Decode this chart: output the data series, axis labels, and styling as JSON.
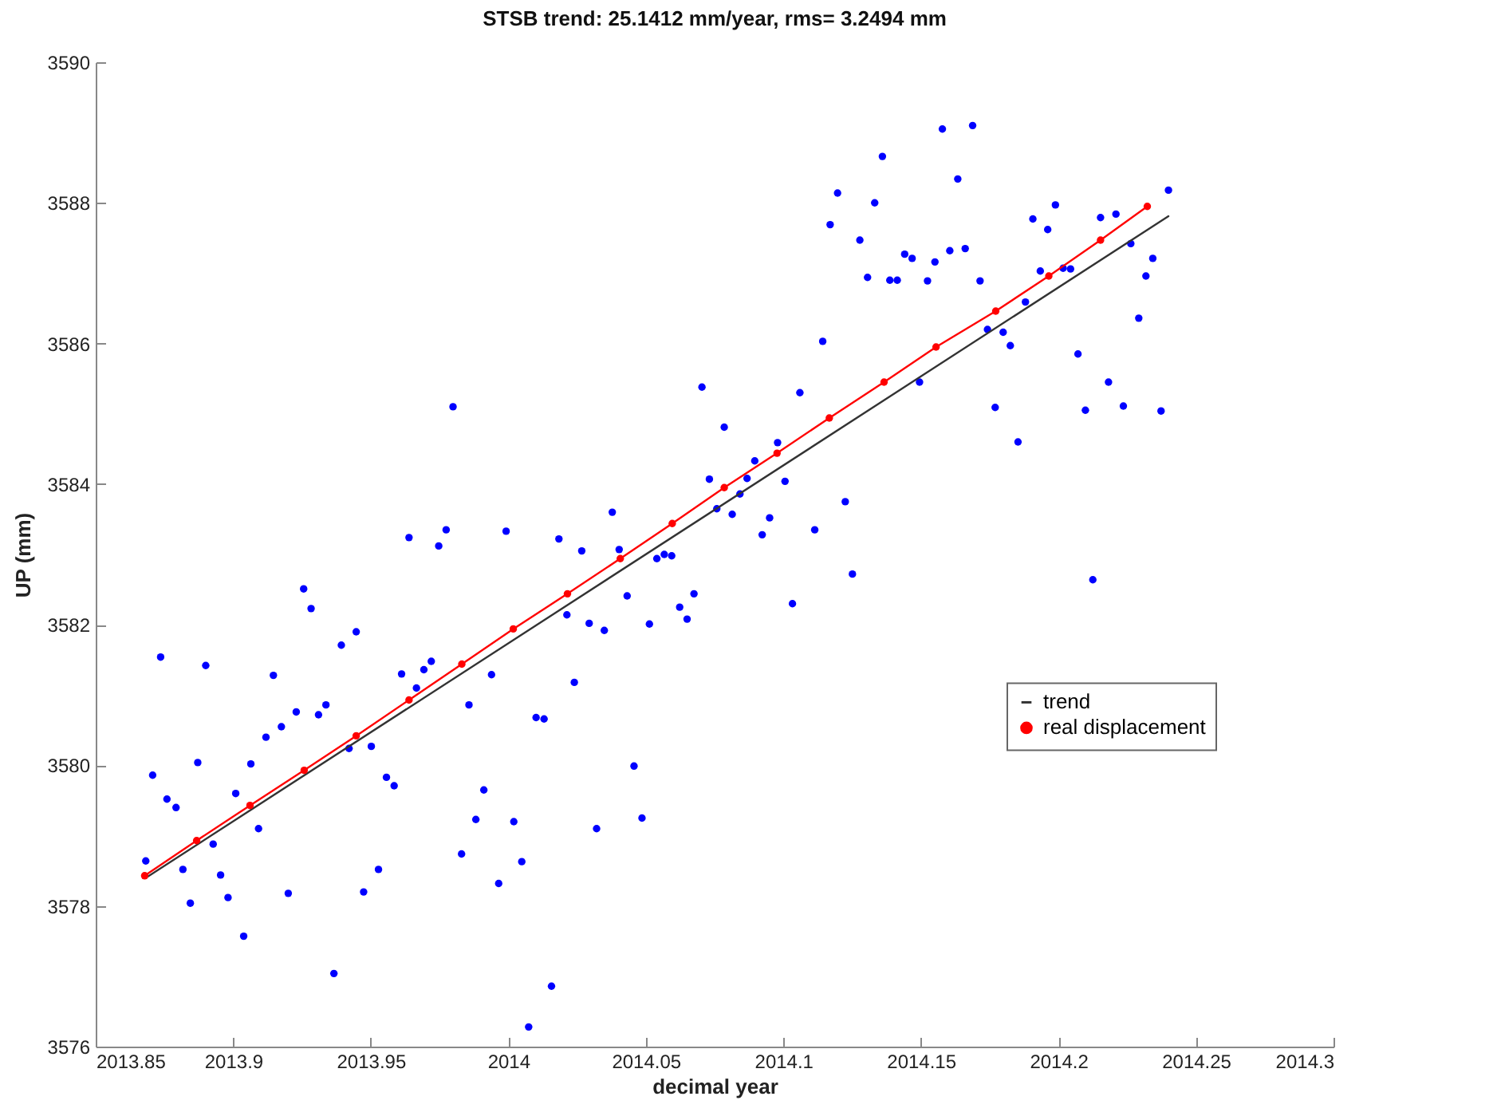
{
  "chart_data": {
    "type": "scatter",
    "title": "STSB   trend: 25.1412 mm/year, rms= 3.2494 mm",
    "xlabel": "decimal year",
    "ylabel": "UP (mm)",
    "xlim": [
      2013.85,
      2014.3
    ],
    "xticks": [
      2013.85,
      2013.9,
      2013.95,
      2014,
      2014.05,
      2014.1,
      2014.15,
      2014.2,
      2014.25,
      2014.3
    ],
    "ylim": [
      3576,
      3590
    ],
    "yticks": [
      3576,
      3578,
      3580,
      3582,
      3584,
      3586,
      3588,
      3590
    ],
    "grid": false,
    "legend": "right",
    "series": [
      {
        "color": "#0000ff",
        "marker": "circle",
        "x": [
          2013.8682,
          2013.8707,
          2013.8736,
          2013.8759,
          2013.8792,
          2013.8817,
          2013.8844,
          2013.8871,
          2013.89,
          2013.8927,
          2013.8954,
          2013.8981,
          2013.9009,
          2013.9038,
          2013.9064,
          2013.9092,
          2013.9119,
          2013.9146,
          2013.9175,
          2013.92,
          2013.9229,
          2013.9256,
          2013.9283,
          2013.931,
          2013.9337,
          2013.9366,
          2013.9393,
          2013.9421,
          2013.9447,
          2013.9474,
          2013.9502,
          2013.9528,
          2013.9557,
          2013.9585,
          2013.9612,
          2013.9639,
          2013.9666,
          2013.9693,
          2013.972,
          2013.9747,
          2013.9774,
          2013.9799,
          2013.983,
          2013.9857,
          2013.9882,
          2013.9911,
          2013.9939,
          2013.9965,
          2013.9992,
          2014.002,
          2014.0049,
          2014.0074,
          2014.0101,
          2014.013,
          2014.0157,
          2014.0184,
          2014.0213,
          2014.024,
          2014.0267,
          2014.0294,
          2014.0321,
          2014.0349,
          2014.0378,
          2014.0403,
          2014.0432,
          2014.0457,
          2014.0486,
          2014.0513,
          2014.054,
          2014.0567,
          2014.0594,
          2014.0623,
          2014.065,
          2014.0675,
          2014.0704,
          2014.0731,
          2014.0758,
          2014.0785,
          2014.0814,
          2014.0842,
          2014.0868,
          2014.0896,
          2014.0923,
          2014.095,
          2014.0979,
          2014.1006,
          2014.1033,
          2014.106,
          2014.1114,
          2014.1143,
          2014.117,
          2014.1197,
          2014.1225,
          2014.1251,
          2014.1278,
          2014.1306,
          2014.1332,
          2014.136,
          2014.1387,
          2014.1414,
          2014.1441,
          2014.1468,
          2014.1495,
          2014.1524,
          2014.1551,
          2014.1578,
          2014.1605,
          2014.1634,
          2014.1661,
          2014.1688,
          2014.1715,
          2014.1742,
          2014.177,
          2014.1799,
          2014.1825,
          2014.1853,
          2014.188,
          2014.1907,
          2014.1934,
          2014.1961,
          2014.1989,
          2014.2017,
          2014.2044,
          2014.2071,
          2014.2098,
          2014.2125,
          2014.2153,
          2014.2182,
          2014.2209,
          2014.2236,
          2014.2263,
          2014.2292,
          2014.2318,
          2014.2343,
          2014.2373,
          2014.24
        ],
        "values": [
          3578.64,
          3579.86,
          3581.54,
          3579.52,
          3579.4,
          3578.52,
          3578.04,
          3580.04,
          3581.42,
          3578.88,
          3578.44,
          3578.12,
          3579.6,
          3577.57,
          3580.02,
          3579.1,
          3580.4,
          3581.28,
          3580.55,
          3578.18,
          3580.76,
          3582.51,
          3582.23,
          3580.72,
          3580.86,
          3577.04,
          3581.71,
          3580.24,
          3581.9,
          3578.2,
          3580.27,
          3578.52,
          3579.83,
          3579.71,
          3581.3,
          3583.24,
          3581.1,
          3581.36,
          3581.48,
          3583.12,
          3583.35,
          3585.1,
          3578.74,
          3580.86,
          3579.23,
          3579.65,
          3581.29,
          3578.32,
          3583.33,
          3579.2,
          3578.63,
          3576.28,
          3580.68,
          3580.66,
          3576.86,
          3583.22,
          3582.14,
          3581.18,
          3583.05,
          3582.02,
          3579.1,
          3581.92,
          3583.6,
          3583.07,
          3582.41,
          3579.99,
          3579.25,
          3582.01,
          3582.94,
          3583,
          3582.98,
          3582.25,
          3582.08,
          3582.44,
          3585.38,
          3584.07,
          3583.65,
          3584.81,
          3583.57,
          3583.86,
          3584.08,
          3584.33,
          3583.28,
          3583.52,
          3584.59,
          3584.04,
          3582.3,
          3585.3,
          3583.35,
          3586.03,
          3587.69,
          3588.14,
          3583.75,
          3582.72,
          3587.47,
          3586.94,
          3588,
          3588.66,
          3586.9,
          3586.9,
          3587.27,
          3587.21,
          3585.45,
          3586.89,
          3587.16,
          3589.05,
          3587.32,
          3588.34,
          3587.35,
          3589.1,
          3586.89,
          3586.2,
          3585.09,
          3586.16,
          3585.97,
          3584.6,
          3586.59,
          3587.77,
          3587.03,
          3587.62,
          3587.97,
          3587.07,
          3587.06,
          3585.85,
          3585.05,
          3582.64,
          3587.79,
          3585.45,
          3587.84,
          3585.11,
          3587.42,
          3586.36,
          3586.96,
          3587.21,
          3585.04,
          3588.18
        ]
      },
      {
        "name": "trend",
        "type": "line",
        "color": "#333333",
        "marker": "none",
        "line_style": "solid",
        "x": [
          2013.8682,
          2014.24
        ],
        "values": [
          3578.4,
          3587.81
        ]
      },
      {
        "name": "real displacement",
        "type": "line",
        "color": "#ff0000",
        "marker": "circle",
        "line_style": "solid",
        "x": [
          2013.8678,
          2013.8867,
          2013.9061,
          2013.9258,
          2013.9447,
          2013.9639,
          2013.9831,
          2014.0018,
          2014.0215,
          2014.0407,
          2014.0596,
          2014.0785,
          2014.0977,
          2014.1167,
          2014.1366,
          2014.1555,
          2014.1772,
          2014.1965,
          2014.2153,
          2014.2323
        ],
        "values": [
          3578.43,
          3578.93,
          3579.43,
          3579.93,
          3580.42,
          3580.93,
          3581.44,
          3581.94,
          3582.44,
          3582.94,
          3583.44,
          3583.95,
          3584.44,
          3584.94,
          3585.45,
          3585.95,
          3586.46,
          3586.96,
          3587.47,
          3587.95
        ]
      }
    ]
  }
}
